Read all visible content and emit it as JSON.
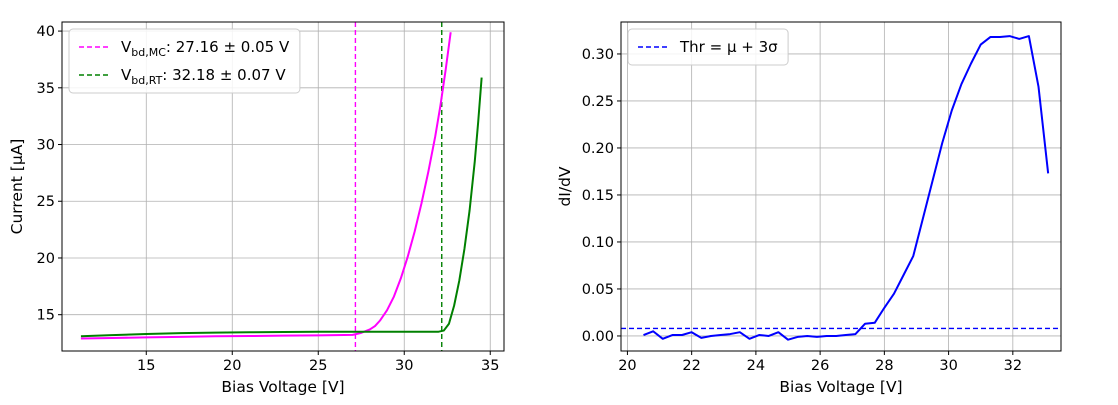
{
  "chart_data": [
    {
      "type": "line",
      "xlabel": "Bias Voltage [V]",
      "ylabel": "Current [μA]",
      "xlim": [
        10.1,
        35.8
      ],
      "ylim": [
        11.8,
        40.8
      ],
      "xticks": [
        10,
        15,
        20,
        25,
        30,
        35
      ],
      "yticks": [
        15,
        20,
        25,
        30,
        35,
        40
      ],
      "grid": true,
      "legend_position": "top-left",
      "legend": [
        {
          "pre": "V",
          "sub": "bd,MC",
          "post": ": 27.16 ± 0.05 V",
          "color": "#ff00ff",
          "style": "dashed"
        },
        {
          "pre": "V",
          "sub": "bd,RT",
          "post": ": 32.18 ± 0.07 V",
          "color": "#008000",
          "style": "dashed"
        }
      ],
      "vlines": [
        {
          "x": 27.16,
          "color": "#ff00ff",
          "style": "dashed"
        },
        {
          "x": 32.18,
          "color": "#008000",
          "style": "dashed"
        }
      ],
      "series": [
        {
          "color": "#ff00ff",
          "x": [
            11.2,
            13,
            15,
            17,
            19,
            21,
            23,
            25,
            26,
            27,
            27.5,
            28,
            28.3,
            28.6,
            29,
            29.4,
            29.8,
            30.2,
            30.6,
            31,
            31.4,
            31.8,
            32.1,
            32.4,
            32.7
          ],
          "y": [
            12.9,
            12.95,
            13.0,
            13.05,
            13.1,
            13.12,
            13.15,
            13.18,
            13.2,
            13.22,
            13.4,
            13.7,
            14.0,
            14.5,
            15.4,
            16.6,
            18.2,
            20.1,
            22.3,
            24.8,
            27.6,
            30.7,
            33.4,
            36.5,
            39.9
          ]
        },
        {
          "color": "#008000",
          "x": [
            11.2,
            13,
            15,
            17,
            19,
            21,
            23,
            25,
            27,
            29,
            31,
            32,
            32.3,
            32.6,
            32.9,
            33.2,
            33.5,
            33.8,
            34.1,
            34.3,
            34.5
          ],
          "y": [
            13.1,
            13.2,
            13.3,
            13.38,
            13.42,
            13.45,
            13.48,
            13.5,
            13.5,
            13.5,
            13.5,
            13.5,
            13.6,
            14.2,
            15.8,
            18.0,
            20.8,
            24.2,
            28.5,
            32.0,
            35.9
          ]
        }
      ]
    },
    {
      "type": "line",
      "xlabel": "Bias Voltage [V]",
      "ylabel": "dI/dV",
      "xlim": [
        19.8,
        33.5
      ],
      "ylim": [
        -0.016,
        0.334
      ],
      "xticks": [
        20,
        22,
        24,
        26,
        28,
        30,
        32
      ],
      "yticks": [
        0.0,
        0.05,
        0.1,
        0.15,
        0.2,
        0.25,
        0.3
      ],
      "ytick_labels": [
        "0.00",
        "0.05",
        "0.10",
        "0.15",
        "0.20",
        "0.25",
        "0.30"
      ],
      "grid": true,
      "legend_position": "top-left",
      "legend": [
        {
          "text": "Thr = μ + 3σ",
          "color": "#0000ff",
          "style": "dashed"
        }
      ],
      "hlines": [
        {
          "y": 0.008,
          "color": "#0000ff",
          "style": "dashed"
        }
      ],
      "series": [
        {
          "color": "#0000ff",
          "x": [
            20.5,
            20.8,
            21.1,
            21.4,
            21.7,
            22.0,
            22.3,
            22.6,
            22.9,
            23.2,
            23.5,
            23.8,
            24.1,
            24.4,
            24.7,
            25.0,
            25.3,
            25.6,
            25.9,
            26.2,
            26.5,
            26.8,
            27.1,
            27.4,
            27.7,
            28.0,
            28.3,
            28.6,
            28.9,
            29.2,
            29.5,
            29.8,
            30.1,
            30.4,
            30.7,
            31.0,
            31.3,
            31.6,
            31.9,
            32.2,
            32.5,
            32.8,
            33.1
          ],
          "y": [
            0.001,
            0.005,
            -0.003,
            0.001,
            0.001,
            0.004,
            -0.002,
            0.0,
            0.001,
            0.002,
            0.004,
            -0.003,
            0.001,
            0.0,
            0.004,
            -0.004,
            -0.001,
            0.0,
            -0.001,
            0.0,
            0.0,
            0.001,
            0.002,
            0.013,
            0.014,
            0.03,
            0.045,
            0.065,
            0.085,
            0.125,
            0.165,
            0.205,
            0.24,
            0.268,
            0.29,
            0.31,
            0.318,
            0.318,
            0.319,
            0.316,
            0.319,
            0.265,
            0.173
          ]
        }
      ]
    }
  ]
}
